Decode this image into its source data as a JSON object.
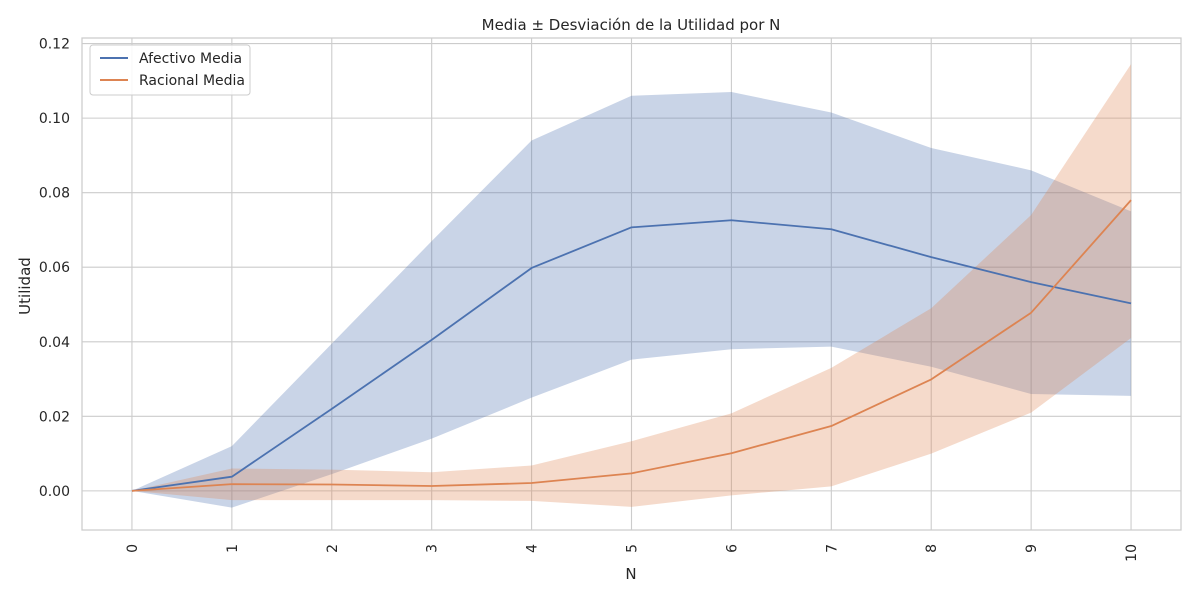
{
  "chart_data": {
    "type": "line",
    "title": "Media ± Desviación de la Utilidad por N",
    "xlabel": "N",
    "ylabel": "Utilidad",
    "x": [
      0,
      1,
      2,
      3,
      4,
      5,
      6,
      7,
      8,
      9,
      10
    ],
    "xlim": [
      -0.5,
      10.5
    ],
    "ylim": [
      -0.0105,
      0.1215
    ],
    "yticks": [
      0.0,
      0.02,
      0.04,
      0.06,
      0.08,
      0.1,
      0.12
    ],
    "ytick_labels": [
      "0.00",
      "0.02",
      "0.04",
      "0.06",
      "0.08",
      "0.10",
      "0.12"
    ],
    "xtick_labels": [
      "0",
      "1",
      "2",
      "3",
      "4",
      "5",
      "6",
      "7",
      "8",
      "9",
      "10"
    ],
    "grid": true,
    "legend_position": "top-left",
    "series": [
      {
        "name": "Afectivo Media",
        "color": "#4c72b0",
        "band_color": "#4c72b0",
        "values": [
          0.0,
          0.0038,
          0.022,
          0.0405,
          0.0598,
          0.0707,
          0.0726,
          0.0702,
          0.0627,
          0.056,
          0.0503
        ],
        "lower": [
          0.0,
          -0.0045,
          0.0045,
          0.014,
          0.025,
          0.0352,
          0.038,
          0.0387,
          0.0333,
          0.026,
          0.0255
        ],
        "upper": [
          0.0,
          0.012,
          0.0395,
          0.067,
          0.094,
          0.106,
          0.107,
          0.1015,
          0.092,
          0.086,
          0.075
        ]
      },
      {
        "name": "Racional Media",
        "color": "#dd8452",
        "band_color": "#dd8452",
        "values": [
          0.0,
          0.0018,
          0.0017,
          0.0013,
          0.0021,
          0.0047,
          0.0101,
          0.0174,
          0.0299,
          0.0478,
          0.078
        ],
        "lower": [
          0.0,
          -0.0025,
          -0.0025,
          -0.0025,
          -0.0027,
          -0.0043,
          -0.0012,
          0.0012,
          0.01,
          0.021,
          0.041
        ],
        "upper": [
          0.0,
          0.006,
          0.0057,
          0.005,
          0.0068,
          0.0133,
          0.0208,
          0.033,
          0.049,
          0.074,
          0.1145
        ]
      }
    ]
  }
}
